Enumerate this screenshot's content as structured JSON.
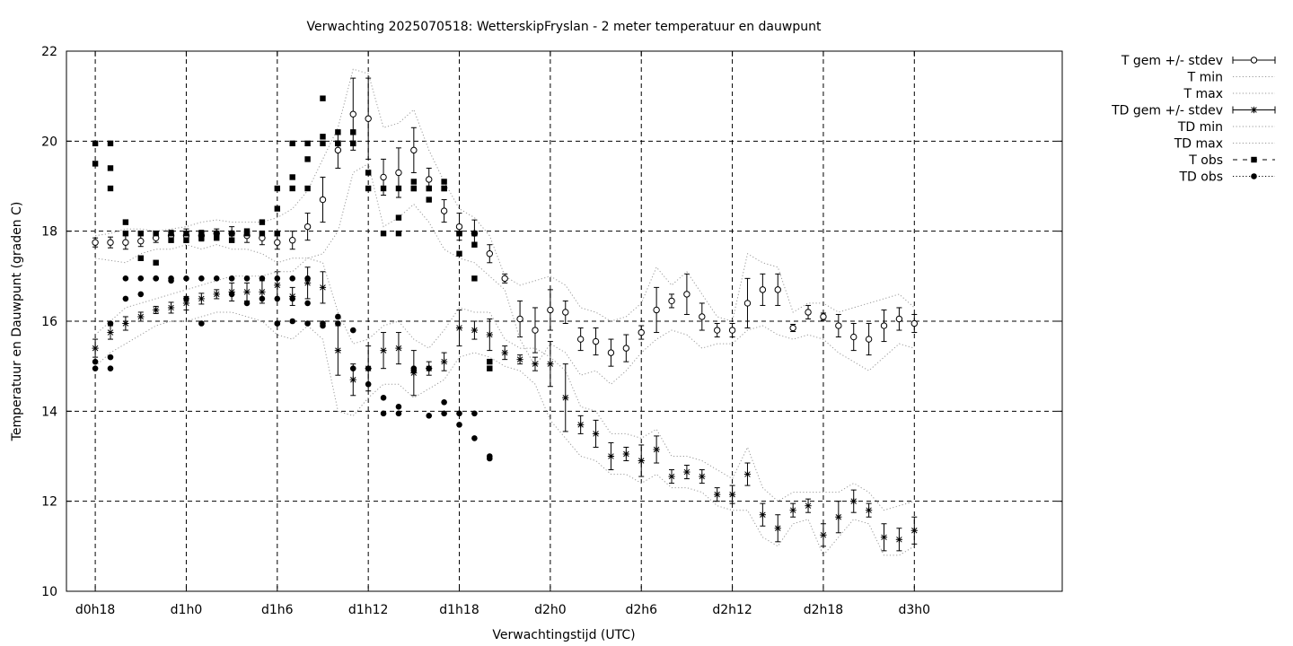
{
  "chart_data": {
    "type": "scatter",
    "title": "Verwachting 2025070518: WetterskipFryslan - 2 meter temperatuur en dauwpunt",
    "xlabel": "Verwachtingstijd (UTC)",
    "ylabel": "Temperatuur en Dauwpunt (graden C)",
    "x_unit": "hours since d0h0",
    "xlim": [
      18,
      78
    ],
    "ylim": [
      10,
      22
    ],
    "x_ticks": [
      {
        "x": 18,
        "label": "d0h18"
      },
      {
        "x": 24,
        "label": "d1h0"
      },
      {
        "x": 30,
        "label": "d1h6"
      },
      {
        "x": 36,
        "label": "d1h12"
      },
      {
        "x": 42,
        "label": "d1h18"
      },
      {
        "x": 48,
        "label": "d2h0"
      },
      {
        "x": 54,
        "label": "d2h6"
      },
      {
        "x": 60,
        "label": "d2h12"
      },
      {
        "x": 66,
        "label": "d2h18"
      },
      {
        "x": 72,
        "label": "d3h0"
      }
    ],
    "y_ticks": [
      10,
      12,
      14,
      16,
      18,
      20,
      22
    ],
    "grid": true,
    "legend_position": "outside-top-right",
    "series": [
      {
        "name": "T gem +/- stdev",
        "style": "errorbar-open-circle",
        "x": [
          18,
          19,
          20,
          21,
          22,
          23,
          24,
          25,
          26,
          27,
          28,
          29,
          30,
          31,
          32,
          33,
          34,
          35,
          36,
          37,
          38,
          39,
          40,
          41,
          42,
          43,
          44,
          45,
          46,
          47,
          48,
          49,
          50,
          51,
          52,
          53,
          54,
          55,
          56,
          57,
          58,
          59,
          60,
          61,
          62,
          63,
          64,
          65,
          66,
          67,
          68,
          69,
          70,
          71,
          72
        ],
        "y": [
          17.75,
          17.75,
          17.75,
          17.78,
          17.85,
          17.9,
          17.9,
          17.9,
          17.95,
          17.95,
          17.9,
          17.85,
          17.75,
          17.8,
          18.1,
          18.7,
          19.8,
          20.6,
          20.5,
          19.2,
          19.3,
          19.8,
          19.15,
          18.45,
          18.1,
          17.95,
          17.5,
          16.95,
          16.05,
          15.8,
          16.25,
          16.2,
          15.6,
          15.55,
          15.3,
          15.4,
          15.75,
          16.25,
          16.45,
          16.6,
          16.1,
          15.8,
          15.8,
          16.4,
          16.7,
          16.7,
          15.85,
          16.2,
          16.1,
          15.9,
          15.65,
          15.6,
          15.9,
          16.05,
          15.95
        ],
        "err": [
          0.1,
          0.12,
          0.15,
          0.12,
          0.1,
          0.12,
          0.15,
          0.12,
          0.1,
          0.15,
          0.15,
          0.15,
          0.15,
          0.2,
          0.3,
          0.5,
          0.4,
          0.8,
          0.9,
          0.4,
          0.55,
          0.5,
          0.25,
          0.25,
          0.3,
          0.3,
          0.2,
          0.1,
          0.4,
          0.5,
          0.45,
          0.25,
          0.25,
          0.3,
          0.3,
          0.3,
          0.15,
          0.5,
          0.15,
          0.45,
          0.3,
          0.15,
          0.15,
          0.55,
          0.35,
          0.35,
          0.08,
          0.15,
          0.08,
          0.25,
          0.3,
          0.35,
          0.35,
          0.25,
          0.2
        ]
      },
      {
        "name": "T min",
        "style": "dotted",
        "x": [
          18,
          19,
          20,
          21,
          22,
          23,
          24,
          25,
          26,
          27,
          28,
          29,
          30,
          31,
          32,
          33,
          34,
          35,
          36,
          37,
          38,
          39,
          40,
          41,
          42,
          43,
          44,
          45,
          46,
          47,
          48,
          49,
          50,
          51,
          52,
          53,
          54,
          55,
          56,
          57,
          58,
          59,
          60,
          61,
          62,
          63,
          64,
          65,
          66,
          67,
          68,
          69,
          70,
          71,
          72
        ],
        "y": [
          17.4,
          17.35,
          17.3,
          17.5,
          17.6,
          17.6,
          17.7,
          17.6,
          17.7,
          17.6,
          17.6,
          17.5,
          17.3,
          17.4,
          17.4,
          17.5,
          18.0,
          19.3,
          19.5,
          18.1,
          18.3,
          18.6,
          18.2,
          17.6,
          17.4,
          17.3,
          17.0,
          16.7,
          15.6,
          15.0,
          15.5,
          15.3,
          14.8,
          14.9,
          14.6,
          14.9,
          15.3,
          15.6,
          15.8,
          15.7,
          15.4,
          15.5,
          15.5,
          15.8,
          15.9,
          15.7,
          15.6,
          15.7,
          15.6,
          15.3,
          15.1,
          14.9,
          15.2,
          15.5,
          15.4
        ]
      },
      {
        "name": "T max",
        "style": "dotted",
        "x": [
          18,
          19,
          20,
          21,
          22,
          23,
          24,
          25,
          26,
          27,
          28,
          29,
          30,
          31,
          32,
          33,
          34,
          35,
          36,
          37,
          38,
          39,
          40,
          41,
          42,
          43,
          44,
          45,
          46,
          47,
          48,
          49,
          50,
          51,
          52,
          53,
          54,
          55,
          56,
          57,
          58,
          59,
          60,
          61,
          62,
          63,
          64,
          65,
          66,
          67,
          68,
          69,
          70,
          71,
          72
        ],
        "y": [
          17.9,
          17.95,
          18.05,
          18.05,
          18.0,
          18.05,
          18.1,
          18.2,
          18.25,
          18.2,
          18.2,
          18.2,
          18.3,
          18.5,
          18.9,
          19.6,
          20.3,
          21.6,
          21.5,
          20.3,
          20.4,
          20.7,
          19.8,
          19.1,
          18.5,
          18.3,
          17.9,
          17.0,
          16.8,
          16.9,
          17.0,
          16.8,
          16.3,
          16.2,
          16.0,
          16.1,
          16.4,
          17.2,
          16.8,
          17.1,
          16.6,
          16.1,
          16.0,
          17.5,
          17.3,
          17.2,
          16.2,
          16.4,
          16.4,
          16.2,
          16.3,
          16.4,
          16.5,
          16.6,
          16.3
        ]
      },
      {
        "name": "TD gem +/- stdev",
        "style": "errorbar-star",
        "x": [
          18,
          19,
          20,
          21,
          22,
          23,
          24,
          25,
          26,
          27,
          28,
          29,
          30,
          31,
          32,
          33,
          34,
          35,
          36,
          37,
          38,
          39,
          40,
          41,
          42,
          43,
          44,
          45,
          46,
          47,
          48,
          49,
          50,
          51,
          52,
          53,
          54,
          55,
          56,
          57,
          58,
          59,
          60,
          61,
          62,
          63,
          64,
          65,
          66,
          67,
          68,
          69,
          70,
          71,
          72
        ],
        "y": [
          15.4,
          15.75,
          15.95,
          16.1,
          16.25,
          16.3,
          16.4,
          16.5,
          16.6,
          16.65,
          16.65,
          16.65,
          16.8,
          16.55,
          16.85,
          16.75,
          15.35,
          14.7,
          14.95,
          15.35,
          15.4,
          14.85,
          14.95,
          15.1,
          15.85,
          15.8,
          15.7,
          15.3,
          15.15,
          15.05,
          15.05,
          14.3,
          13.7,
          13.5,
          13.0,
          13.05,
          12.9,
          13.15,
          12.55,
          12.65,
          12.55,
          12.15,
          12.15,
          12.6,
          11.7,
          11.4,
          11.8,
          11.9,
          11.25,
          11.65,
          12.0,
          11.8,
          11.2,
          11.15,
          11.35
        ],
        "err": [
          0.2,
          0.15,
          0.15,
          0.1,
          0.08,
          0.12,
          0.15,
          0.12,
          0.1,
          0.2,
          0.2,
          0.25,
          0.3,
          0.2,
          0.35,
          0.35,
          0.55,
          0.35,
          0.5,
          0.4,
          0.35,
          0.5,
          0.15,
          0.2,
          0.4,
          0.2,
          0.35,
          0.15,
          0.1,
          0.15,
          0.5,
          0.75,
          0.2,
          0.3,
          0.3,
          0.15,
          0.35,
          0.3,
          0.15,
          0.15,
          0.15,
          0.15,
          0.2,
          0.25,
          0.25,
          0.3,
          0.15,
          0.15,
          0.25,
          0.35,
          0.25,
          0.15,
          0.3,
          0.25,
          0.3
        ]
      },
      {
        "name": "TD min",
        "style": "dotted",
        "x": [
          18,
          19,
          20,
          21,
          22,
          23,
          24,
          25,
          26,
          27,
          28,
          29,
          30,
          31,
          32,
          33,
          34,
          35,
          36,
          37,
          38,
          39,
          40,
          41,
          42,
          43,
          44,
          45,
          46,
          47,
          48,
          49,
          50,
          51,
          52,
          53,
          54,
          55,
          56,
          57,
          58,
          59,
          60,
          61,
          62,
          63,
          64,
          65,
          66,
          67,
          68,
          69,
          70,
          71,
          72
        ],
        "y": [
          15.0,
          15.3,
          15.5,
          15.7,
          15.9,
          16.0,
          16.0,
          16.1,
          16.2,
          16.2,
          16.1,
          16.0,
          15.7,
          15.6,
          15.9,
          15.6,
          14.0,
          13.9,
          14.3,
          14.6,
          14.6,
          14.3,
          14.5,
          14.7,
          15.2,
          15.3,
          15.2,
          15.0,
          14.9,
          14.6,
          13.8,
          13.4,
          13.0,
          12.9,
          12.6,
          12.6,
          12.4,
          12.6,
          12.3,
          12.3,
          12.2,
          11.9,
          11.8,
          11.8,
          11.2,
          11.0,
          11.5,
          11.6,
          10.8,
          11.2,
          11.6,
          11.5,
          10.8,
          10.8,
          11.0
        ]
      },
      {
        "name": "TD max",
        "style": "dotted",
        "x": [
          18,
          19,
          20,
          21,
          22,
          23,
          24,
          25,
          26,
          27,
          28,
          29,
          30,
          31,
          32,
          33,
          34,
          35,
          36,
          37,
          38,
          39,
          40,
          41,
          42,
          43,
          44,
          45,
          46,
          47,
          48,
          49,
          50,
          51,
          52,
          53,
          54,
          55,
          56,
          57,
          58,
          59,
          60,
          61,
          62,
          63,
          64,
          65,
          66,
          67,
          68,
          69,
          70,
          71,
          72
        ],
        "y": [
          15.7,
          16.0,
          16.3,
          16.4,
          16.5,
          16.6,
          16.7,
          16.8,
          16.9,
          17.0,
          17.0,
          17.0,
          17.1,
          17.1,
          17.4,
          17.3,
          16.2,
          15.5,
          15.6,
          15.9,
          16.0,
          15.6,
          15.4,
          15.8,
          16.3,
          16.2,
          16.2,
          15.6,
          15.4,
          15.4,
          15.2,
          14.9,
          14.1,
          14.0,
          13.5,
          13.5,
          13.4,
          13.6,
          13.0,
          13.0,
          12.9,
          12.7,
          12.5,
          13.2,
          12.3,
          12.0,
          12.2,
          12.2,
          12.2,
          12.2,
          12.4,
          12.2,
          11.8,
          11.9,
          12.0
        ]
      },
      {
        "name": "T obs",
        "style": "filled-square",
        "x": [
          18,
          18,
          19,
          19,
          19,
          20,
          20,
          21,
          21,
          22,
          22,
          23,
          23,
          24,
          24,
          25,
          25,
          26,
          26,
          27,
          27,
          28,
          28,
          29,
          29,
          30,
          30,
          30,
          30,
          31,
          31,
          31,
          32,
          32,
          32,
          33,
          33,
          33,
          34,
          34,
          34,
          34,
          35,
          35,
          35,
          36,
          36,
          37,
          37,
          38,
          38,
          38,
          39,
          39,
          39,
          40,
          40,
          40,
          41,
          41,
          41,
          42,
          42,
          42,
          43,
          43,
          43,
          44,
          44
        ],
        "y": [
          19.95,
          19.5,
          19.95,
          19.4,
          18.95,
          18.2,
          17.95,
          17.4,
          17.95,
          17.3,
          17.95,
          17.95,
          17.8,
          17.95,
          17.8,
          17.95,
          17.85,
          17.95,
          17.85,
          17.95,
          17.8,
          17.95,
          18.0,
          17.95,
          18.2,
          18.95,
          18.5,
          17.95,
          17.95,
          19.95,
          19.2,
          18.95,
          19.95,
          19.6,
          18.95,
          20.95,
          20.1,
          19.95,
          20.2,
          19.95,
          19.95,
          19.95,
          20.2,
          19.95,
          19.95,
          19.3,
          18.95,
          18.95,
          17.95,
          18.95,
          18.3,
          17.95,
          19.1,
          18.95,
          18.95,
          18.95,
          18.7,
          18.95,
          19.1,
          18.95,
          18.95,
          17.95,
          17.5,
          17.95,
          17.95,
          17.7,
          16.95,
          15.1,
          14.95
        ]
      },
      {
        "name": "TD obs",
        "style": "filled-circle",
        "x": [
          18,
          18,
          19,
          19,
          19,
          20,
          20,
          21,
          21,
          22,
          22,
          23,
          23,
          24,
          24,
          25,
          25,
          26,
          27,
          27,
          28,
          28,
          29,
          29,
          30,
          30,
          30,
          30,
          31,
          31,
          31,
          32,
          32,
          32,
          33,
          33,
          34,
          34,
          35,
          35,
          36,
          36,
          37,
          37,
          38,
          38,
          39,
          39,
          40,
          40,
          41,
          41,
          42,
          42,
          43,
          43,
          44,
          44
        ],
        "y": [
          15.1,
          14.95,
          15.95,
          15.2,
          14.95,
          16.95,
          16.5,
          16.95,
          16.6,
          16.95,
          16.95,
          16.9,
          16.95,
          16.95,
          16.5,
          16.95,
          15.95,
          16.95,
          16.95,
          16.6,
          16.95,
          16.4,
          16.95,
          16.5,
          16.95,
          16.5,
          15.95,
          15.95,
          16.95,
          16.5,
          16.0,
          16.95,
          16.4,
          15.95,
          15.95,
          15.9,
          16.1,
          15.95,
          15.8,
          14.95,
          14.95,
          14.6,
          14.3,
          13.95,
          14.1,
          13.95,
          14.95,
          14.9,
          14.95,
          13.9,
          14.2,
          13.95,
          13.95,
          13.7,
          13.95,
          13.4,
          13.0,
          12.95
        ]
      }
    ]
  }
}
